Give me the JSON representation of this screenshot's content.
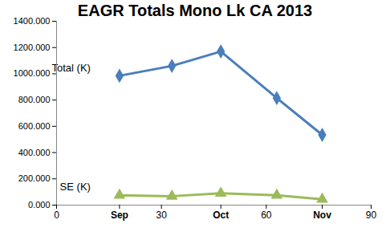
{
  "chart_data": {
    "type": "line",
    "title": "EAGR Totals Mono Lk CA 2013",
    "x": [
      18,
      33,
      47,
      63,
      76
    ],
    "series": [
      {
        "name": "Total (K)",
        "color": "#4a7ebb",
        "marker": "diamond",
        "values": [
          985,
          1060,
          1170,
          815,
          535
        ]
      },
      {
        "name": "SE (K)",
        "color": "#9bbb59",
        "marker": "triangle",
        "values": [
          75,
          68,
          90,
          75,
          45
        ]
      }
    ],
    "xlim": [
      0,
      90
    ],
    "xticks": [
      0,
      {
        "value": 18,
        "label": "Sep"
      },
      30,
      {
        "value": 47,
        "label": "Oct"
      },
      60,
      {
        "value": 76,
        "label": "Nov"
      },
      90
    ],
    "ylim": [
      0,
      1400
    ],
    "yticks": [
      {
        "value": 0,
        "label": "0.000"
      },
      {
        "value": 200,
        "label": "200.000"
      },
      {
        "value": 400,
        "label": "400.000"
      },
      {
        "value": 600,
        "label": "600.000"
      },
      {
        "value": 800,
        "label": "800.000"
      },
      {
        "value": 1000,
        "label": "1000.000"
      },
      {
        "value": 1200,
        "label": "1200.000"
      },
      {
        "value": 1400,
        "label": "1400.000"
      }
    ],
    "grid": false
  }
}
